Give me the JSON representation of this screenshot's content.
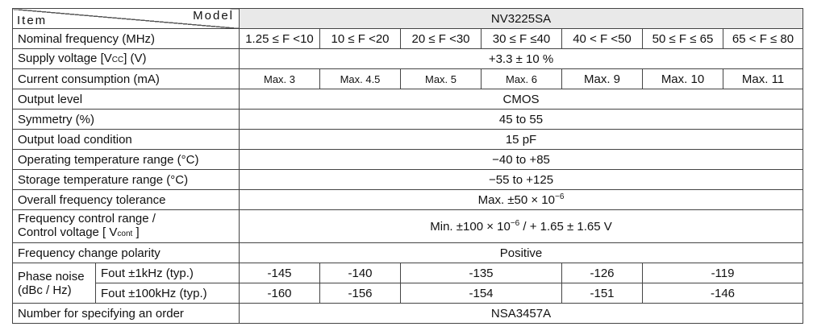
{
  "header": {
    "model_label": "Model",
    "item_label": "Item",
    "model_name": "NV3225SA"
  },
  "nominal_frequency": {
    "label": "Nominal frequency (MHz)",
    "ranges": [
      "1.25 ≤ F <10",
      "10 ≤ F <20",
      "20 ≤ F <30",
      "30 ≤ F ≤40",
      "40 < F <50",
      "50 ≤ F ≤ 65",
      "65 < F ≤ 80"
    ]
  },
  "supply_voltage": {
    "label_pre": "Supply voltage [V",
    "label_sub": "CC",
    "label_post": "] (V)",
    "value": "+3.3 ± 10 %"
  },
  "current_consumption": {
    "label": "Current consumption (mA)",
    "values": [
      "Max. 3",
      "Max. 4.5",
      "Max. 5",
      "Max. 6",
      "Max. 9",
      "Max. 10",
      "Max. 11"
    ]
  },
  "output_level": {
    "label": "Output level",
    "value": "CMOS"
  },
  "symmetry": {
    "label": "Symmetry (%)",
    "value": "45 to 55"
  },
  "output_load": {
    "label": "Output load condition",
    "value": "15 pF"
  },
  "operating_temp": {
    "label": "Operating temperature range (°C)",
    "value": "−40 to +85"
  },
  "storage_temp": {
    "label": "Storage temperature range (°C)",
    "value": "−55 to +125"
  },
  "overall_tolerance": {
    "label": "Overall frequency tolerance",
    "value_pre": "Max. ±50 × 10",
    "value_sup": "−6"
  },
  "freq_control": {
    "label_line1": "Frequency control range /",
    "label_line2_pre": "Control voltage [ V",
    "label_line2_sub": "cont",
    "label_line2_post": " ]",
    "value_pre": "Min. ±100 × 10",
    "value_sup": "−6",
    "value_post": " / + 1.65 ± 1.65 V"
  },
  "polarity": {
    "label": "Frequency change polarity",
    "value": "Positive"
  },
  "phase_noise": {
    "label_line1": "Phase noise",
    "label_line2": "(dBc / Hz)",
    "rows": [
      {
        "label": "Fout ±1kHz (typ.)",
        "v1": "-145",
        "v2": "-140",
        "v3": "-135",
        "v4": "-126",
        "v5": "-119"
      },
      {
        "label": "Fout ±100kHz (typ.)",
        "v1": "-160",
        "v2": "-156",
        "v3": "-154",
        "v4": "-151",
        "v5": "-146"
      }
    ]
  },
  "order_number": {
    "label": "Number for specifying an order",
    "value": "NSA3457A"
  }
}
